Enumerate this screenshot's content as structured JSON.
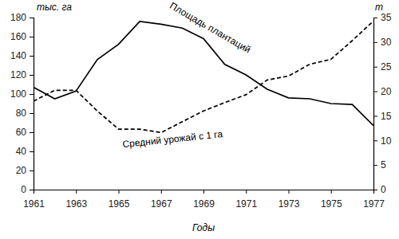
{
  "chart_data": {
    "type": "line",
    "x_label": "Годы",
    "y_label": "тыс. га",
    "y2_label": "т",
    "x": [
      1961,
      1962,
      1963,
      1964,
      1965,
      1966,
      1967,
      1968,
      1969,
      1970,
      1971,
      1972,
      1973,
      1974,
      1975,
      1976,
      1977
    ],
    "xlim": [
      1961,
      1977
    ],
    "xticks": [
      1961,
      1963,
      1965,
      1967,
      1969,
      1971,
      1973,
      1975,
      1977
    ],
    "ylim": [
      0,
      180
    ],
    "yticks": [
      0,
      20,
      40,
      60,
      80,
      100,
      120,
      140,
      160,
      180
    ],
    "y2lim": [
      0,
      35
    ],
    "y2ticks": [
      0,
      5,
      10,
      15,
      20,
      25,
      30,
      35
    ],
    "grid": false,
    "series": [
      {
        "name": "Площадь плантаций",
        "color": "#000000",
        "line_style": "solid",
        "values": [
          107,
          95,
          103,
          136,
          152,
          176,
          173,
          169,
          158,
          131,
          120,
          105,
          96,
          95,
          90,
          89,
          67
        ]
      },
      {
        "name": "Средний урожай с 1 га",
        "color": "#000000",
        "line_style": "dashed",
        "axis": "y2",
        "values": [
          18,
          20.2,
          20.2,
          16,
          12.3,
          12.3,
          11.6,
          13.8,
          16,
          17.7,
          19.3,
          22.3,
          23.1,
          25.5,
          26.5,
          30.3,
          34.3
        ]
      }
    ]
  }
}
